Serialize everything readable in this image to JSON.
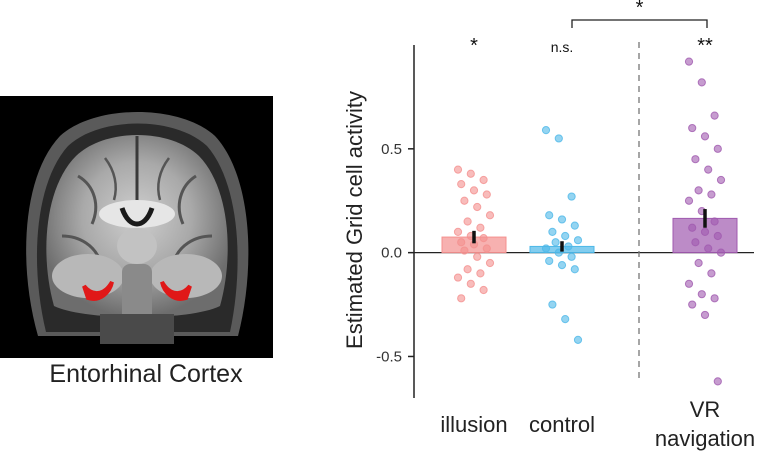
{
  "figure": {
    "caption": "Entorhinal Cortex"
  },
  "colors": {
    "illusion": "#f4908e",
    "control": "#4db8e8",
    "vr": "#a05aaf",
    "axis": "#222222",
    "highlight": "#e01818"
  },
  "chart_data": {
    "type": "bar",
    "ylabel": "Estimated Grid cell activity",
    "ylim": [
      -0.7,
      1.0
    ],
    "yticks": [
      "-0.5",
      "0.0",
      "0.5"
    ],
    "ytick_values": [
      -0.5,
      0.0,
      0.5
    ],
    "categories": [
      "illusion",
      "control",
      "VR navigation"
    ],
    "category_label_lines": [
      [
        "illusion"
      ],
      [
        "control"
      ],
      [
        "VR",
        "navigation"
      ]
    ],
    "bars": [
      {
        "name": "illusion",
        "mean": 0.075,
        "sem": 0.03,
        "significance": "*",
        "points": [
          0.4,
          0.38,
          0.35,
          0.33,
          0.3,
          0.28,
          0.25,
          0.22,
          0.18,
          0.15,
          0.12,
          0.1,
          0.08,
          0.07,
          0.05,
          0.04,
          0.02,
          0.01,
          -0.02,
          -0.05,
          -0.08,
          -0.1,
          -0.12,
          -0.15,
          -0.18,
          -0.22
        ]
      },
      {
        "name": "control",
        "mean": 0.03,
        "sem": 0.025,
        "significance": "n.s.",
        "points": [
          0.59,
          0.55,
          0.27,
          0.18,
          0.16,
          0.13,
          0.1,
          0.08,
          0.06,
          0.05,
          0.03,
          0.02,
          0.0,
          -0.02,
          -0.04,
          -0.06,
          -0.08,
          -0.25,
          -0.32,
          -0.42
        ]
      },
      {
        "name": "VR navigation",
        "mean": 0.165,
        "sem": 0.045,
        "significance": "**",
        "points": [
          0.92,
          0.82,
          0.66,
          0.6,
          0.56,
          0.5,
          0.45,
          0.4,
          0.35,
          0.3,
          0.28,
          0.25,
          0.2,
          0.15,
          0.12,
          0.1,
          0.08,
          0.05,
          0.02,
          0.0,
          -0.05,
          -0.1,
          -0.15,
          -0.2,
          -0.22,
          -0.25,
          -0.3,
          -0.62
        ]
      }
    ],
    "comparison": {
      "from": "control",
      "to": "VR navigation",
      "label": "*"
    },
    "separator": "dashed line between control and VR navigation"
  }
}
